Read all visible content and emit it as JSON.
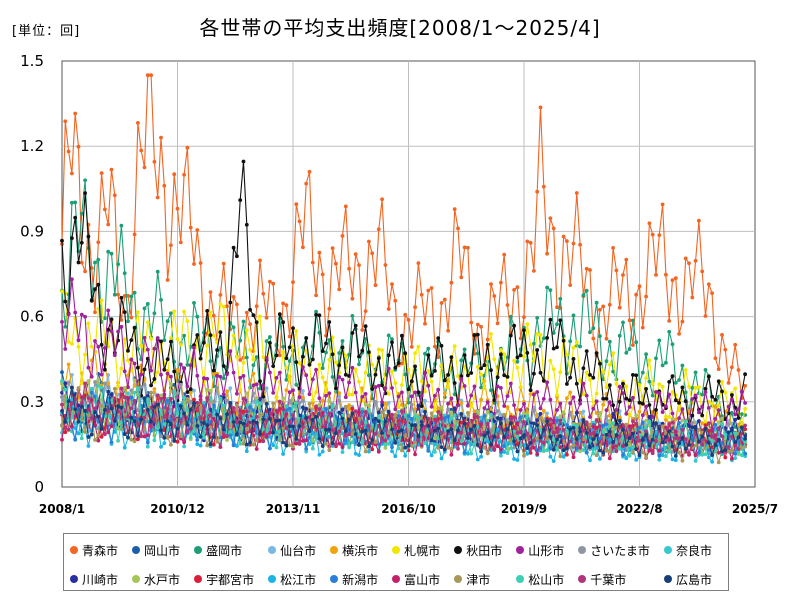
{
  "unit_label": "[単位：回]",
  "chart_data": {
    "type": "line",
    "title": "各世帯の平均支出頻度[2008/1～2025/4]",
    "xlabel": "",
    "ylabel": "",
    "ylim": [
      0,
      1.5
    ],
    "yticks": [
      "0",
      "0.3",
      "0.6",
      "0.9",
      "1.2",
      "1.5"
    ],
    "xticks": [
      "2008/1",
      "2010/12",
      "2013/11",
      "2016/10",
      "2019/9",
      "2022/8",
      "2025/7"
    ],
    "xrange": [
      "2008/1",
      "2025/7"
    ],
    "grid": true,
    "legend_position": "bottom",
    "series": [
      {
        "name": "青森市",
        "color": "#f26522",
        "base": 0.6,
        "amp": 0.22,
        "phase": 0.2,
        "anchors": [
          [
            2008.0,
            0.78
          ],
          [
            2008.1,
            1.04
          ],
          [
            2008.2,
            1.14
          ],
          [
            2008.4,
            1.07
          ],
          [
            2008.8,
            0.82
          ],
          [
            2009.2,
            0.95
          ],
          [
            2009.6,
            0.64
          ],
          [
            2009.9,
            1.07
          ],
          [
            2010.2,
            1.24
          ],
          [
            2010.5,
            1.16
          ],
          [
            2010.8,
            0.99
          ],
          [
            2011.3,
            0.88
          ],
          [
            2011.8,
            0.62
          ],
          [
            2012.3,
            0.58
          ],
          [
            2013.0,
            0.62
          ],
          [
            2013.5,
            0.6
          ],
          [
            2014.0,
            0.85
          ],
          [
            2014.2,
            0.9
          ],
          [
            2014.8,
            0.72
          ],
          [
            2015.4,
            0.78
          ],
          [
            2016.0,
            0.8
          ],
          [
            2016.5,
            0.58
          ],
          [
            2017.5,
            0.62
          ],
          [
            2018.0,
            0.8
          ],
          [
            2018.5,
            0.58
          ],
          [
            2019.0,
            0.6
          ],
          [
            2019.9,
            0.8
          ],
          [
            2020.1,
            1.03
          ],
          [
            2020.4,
            0.88
          ],
          [
            2021.0,
            0.78
          ],
          [
            2021.6,
            0.62
          ],
          [
            2022.5,
            0.7
          ],
          [
            2023.2,
            0.8
          ],
          [
            2023.8,
            0.68
          ],
          [
            2024.3,
            0.75
          ],
          [
            2024.8,
            0.4
          ],
          [
            2025.25,
            0.35
          ]
        ]
      },
      {
        "name": "岡山市",
        "color": "#1a5fa8",
        "base": 0.28,
        "amp": 0.1,
        "phase": 1.1,
        "anchors": [
          [
            2008.0,
            0.32
          ],
          [
            2010.0,
            0.3
          ],
          [
            2013.0,
            0.24
          ],
          [
            2016.0,
            0.22
          ],
          [
            2019.0,
            0.22
          ],
          [
            2022.0,
            0.18
          ],
          [
            2025.25,
            0.18
          ]
        ]
      },
      {
        "name": "盛岡市",
        "color": "#1d9e76",
        "base": 0.45,
        "amp": 0.16,
        "phase": 2.3,
        "anchors": [
          [
            2008.0,
            0.7
          ],
          [
            2008.3,
            0.88
          ],
          [
            2009.0,
            0.78
          ],
          [
            2010.0,
            0.62
          ],
          [
            2011.0,
            0.52
          ],
          [
            2013.0,
            0.45
          ],
          [
            2015.0,
            0.48
          ],
          [
            2017.0,
            0.4
          ],
          [
            2019.0,
            0.42
          ],
          [
            2020.0,
            0.55
          ],
          [
            2021.0,
            0.58
          ],
          [
            2022.0,
            0.48
          ],
          [
            2023.5,
            0.42
          ],
          [
            2025.25,
            0.2
          ]
        ]
      },
      {
        "name": "仙台市",
        "color": "#7ab8e6",
        "base": 0.25,
        "amp": 0.1,
        "phase": 3.2,
        "anchors": [
          [
            2008.0,
            0.3
          ],
          [
            2011.0,
            0.28
          ],
          [
            2015.0,
            0.24
          ],
          [
            2019.0,
            0.22
          ],
          [
            2022.0,
            0.2
          ],
          [
            2025.25,
            0.18
          ]
        ]
      },
      {
        "name": "横浜市",
        "color": "#f0a30a",
        "base": 0.3,
        "amp": 0.12,
        "phase": 4.1,
        "anchors": [
          [
            2008.0,
            0.38
          ],
          [
            2011.0,
            0.32
          ],
          [
            2015.0,
            0.28
          ],
          [
            2019.0,
            0.28
          ],
          [
            2022.0,
            0.24
          ],
          [
            2025.25,
            0.22
          ]
        ]
      },
      {
        "name": "札幌市",
        "color": "#f2e600",
        "base": 0.4,
        "amp": 0.14,
        "phase": 0.7,
        "anchors": [
          [
            2008.0,
            0.55
          ],
          [
            2010.0,
            0.48
          ],
          [
            2012.0,
            0.52
          ],
          [
            2014.0,
            0.42
          ],
          [
            2016.0,
            0.4
          ],
          [
            2018.0,
            0.38
          ],
          [
            2020.0,
            0.46
          ],
          [
            2022.0,
            0.36
          ],
          [
            2025.25,
            0.28
          ]
        ]
      },
      {
        "name": "秋田市",
        "color": "#111111",
        "base": 0.4,
        "amp": 0.14,
        "phase": 1.9,
        "anchors": [
          [
            2008.0,
            0.82
          ],
          [
            2008.4,
            0.88
          ],
          [
            2009.0,
            0.6
          ],
          [
            2010.0,
            0.45
          ],
          [
            2011.0,
            0.4
          ],
          [
            2012.2,
            0.55
          ],
          [
            2012.5,
            0.97
          ],
          [
            2013.0,
            0.45
          ],
          [
            2014.0,
            0.5
          ],
          [
            2015.0,
            0.48
          ],
          [
            2017.0,
            0.4
          ],
          [
            2019.0,
            0.44
          ],
          [
            2020.5,
            0.48
          ],
          [
            2022.0,
            0.32
          ],
          [
            2024.0,
            0.3
          ],
          [
            2025.25,
            0.32
          ]
        ]
      },
      {
        "name": "山形市",
        "color": "#a0229c",
        "base": 0.34,
        "amp": 0.12,
        "phase": 2.8,
        "anchors": [
          [
            2008.0,
            0.58
          ],
          [
            2009.0,
            0.5
          ],
          [
            2011.0,
            0.38
          ],
          [
            2014.0,
            0.34
          ],
          [
            2018.0,
            0.3
          ],
          [
            2021.0,
            0.28
          ],
          [
            2025.25,
            0.26
          ]
        ]
      },
      {
        "name": "さいたま市",
        "color": "#8f96a3",
        "base": 0.25,
        "amp": 0.1,
        "phase": 3.7,
        "anchors": [
          [
            2008.0,
            0.3
          ],
          [
            2012.0,
            0.26
          ],
          [
            2016.0,
            0.22
          ],
          [
            2020.0,
            0.2
          ],
          [
            2025.25,
            0.16
          ]
        ]
      },
      {
        "name": "奈良市",
        "color": "#39c7cf",
        "base": 0.22,
        "amp": 0.1,
        "phase": 4.6,
        "anchors": [
          [
            2008.0,
            0.26
          ],
          [
            2012.0,
            0.22
          ],
          [
            2016.0,
            0.2
          ],
          [
            2020.0,
            0.18
          ],
          [
            2025.25,
            0.14
          ]
        ]
      },
      {
        "name": "川崎市",
        "color": "#2a2fa0",
        "base": 0.24,
        "amp": 0.09,
        "phase": 0.4,
        "anchors": [
          [
            2008.0,
            0.28
          ],
          [
            2012.0,
            0.24
          ],
          [
            2016.0,
            0.22
          ],
          [
            2020.0,
            0.2
          ],
          [
            2025.25,
            0.18
          ]
        ]
      },
      {
        "name": "水戸市",
        "color": "#a5c45a",
        "base": 0.24,
        "amp": 0.1,
        "phase": 1.4,
        "anchors": [
          [
            2008.0,
            0.3
          ],
          [
            2012.0,
            0.26
          ],
          [
            2016.0,
            0.22
          ],
          [
            2020.0,
            0.2
          ],
          [
            2025.25,
            0.18
          ]
        ]
      },
      {
        "name": "宇都宮市",
        "color": "#d91e3a",
        "base": 0.22,
        "amp": 0.09,
        "phase": 2.5,
        "anchors": [
          [
            2008.0,
            0.26
          ],
          [
            2012.0,
            0.22
          ],
          [
            2016.0,
            0.2
          ],
          [
            2020.0,
            0.18
          ],
          [
            2025.25,
            0.16
          ]
        ]
      },
      {
        "name": "松江市",
        "color": "#1bb4e6",
        "base": 0.2,
        "amp": 0.09,
        "phase": 3.4,
        "anchors": [
          [
            2008.0,
            0.24
          ],
          [
            2012.0,
            0.2
          ],
          [
            2016.0,
            0.16
          ],
          [
            2020.0,
            0.14
          ],
          [
            2025.25,
            0.14
          ]
        ]
      },
      {
        "name": "新潟市",
        "color": "#2a7fd8",
        "base": 0.22,
        "amp": 0.09,
        "phase": 4.4,
        "anchors": [
          [
            2008.0,
            0.26
          ],
          [
            2012.0,
            0.22
          ],
          [
            2016.0,
            0.2
          ],
          [
            2020.0,
            0.18
          ],
          [
            2025.25,
            0.16
          ]
        ]
      },
      {
        "name": "富山市",
        "color": "#c4206a",
        "base": 0.21,
        "amp": 0.09,
        "phase": 5.2,
        "anchors": [
          [
            2008.0,
            0.26
          ],
          [
            2012.0,
            0.22
          ],
          [
            2016.0,
            0.19
          ],
          [
            2020.0,
            0.17
          ],
          [
            2025.25,
            0.15
          ]
        ]
      },
      {
        "name": "津市",
        "color": "#a8995a",
        "base": 0.22,
        "amp": 0.1,
        "phase": 5.8,
        "anchors": [
          [
            2008.0,
            0.26
          ],
          [
            2012.0,
            0.22
          ],
          [
            2016.0,
            0.2
          ],
          [
            2020.0,
            0.18
          ],
          [
            2025.25,
            0.14
          ]
        ]
      },
      {
        "name": "松山市",
        "color": "#3dd0b5",
        "base": 0.23,
        "amp": 0.1,
        "phase": 0.9,
        "anchors": [
          [
            2008.0,
            0.28
          ],
          [
            2012.0,
            0.24
          ],
          [
            2016.0,
            0.2
          ],
          [
            2020.0,
            0.18
          ],
          [
            2025.25,
            0.16
          ]
        ]
      },
      {
        "name": "千葉市",
        "color": "#b1357a",
        "base": 0.24,
        "amp": 0.09,
        "phase": 2.0,
        "anchors": [
          [
            2008.0,
            0.28
          ],
          [
            2012.0,
            0.24
          ],
          [
            2016.0,
            0.21
          ],
          [
            2020.0,
            0.19
          ],
          [
            2025.25,
            0.17
          ]
        ]
      },
      {
        "name": "広島市",
        "color": "#17407a",
        "base": 0.22,
        "amp": 0.09,
        "phase": 3.0,
        "anchors": [
          [
            2008.0,
            0.26
          ],
          [
            2012.0,
            0.22
          ],
          [
            2016.0,
            0.2
          ],
          [
            2020.0,
            0.18
          ],
          [
            2025.25,
            0.16
          ]
        ]
      }
    ]
  }
}
